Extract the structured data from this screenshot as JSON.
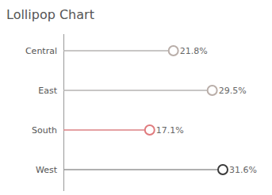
{
  "chart_data": {
    "type": "lollipop",
    "title": "Lollipop Chart",
    "orientation": "horizontal",
    "categories": [
      "Central",
      "East",
      "South",
      "West"
    ],
    "values": [
      21.8,
      29.5,
      17.1,
      31.6
    ],
    "value_labels": [
      "21.8%",
      "29.5%",
      "17.1%",
      "31.6%"
    ],
    "colors": [
      "#b9aea9",
      "#b9aea9",
      "#e07b7e",
      "#3a3a3a"
    ],
    "data_labels": true,
    "tick_labels": "y"
  }
}
